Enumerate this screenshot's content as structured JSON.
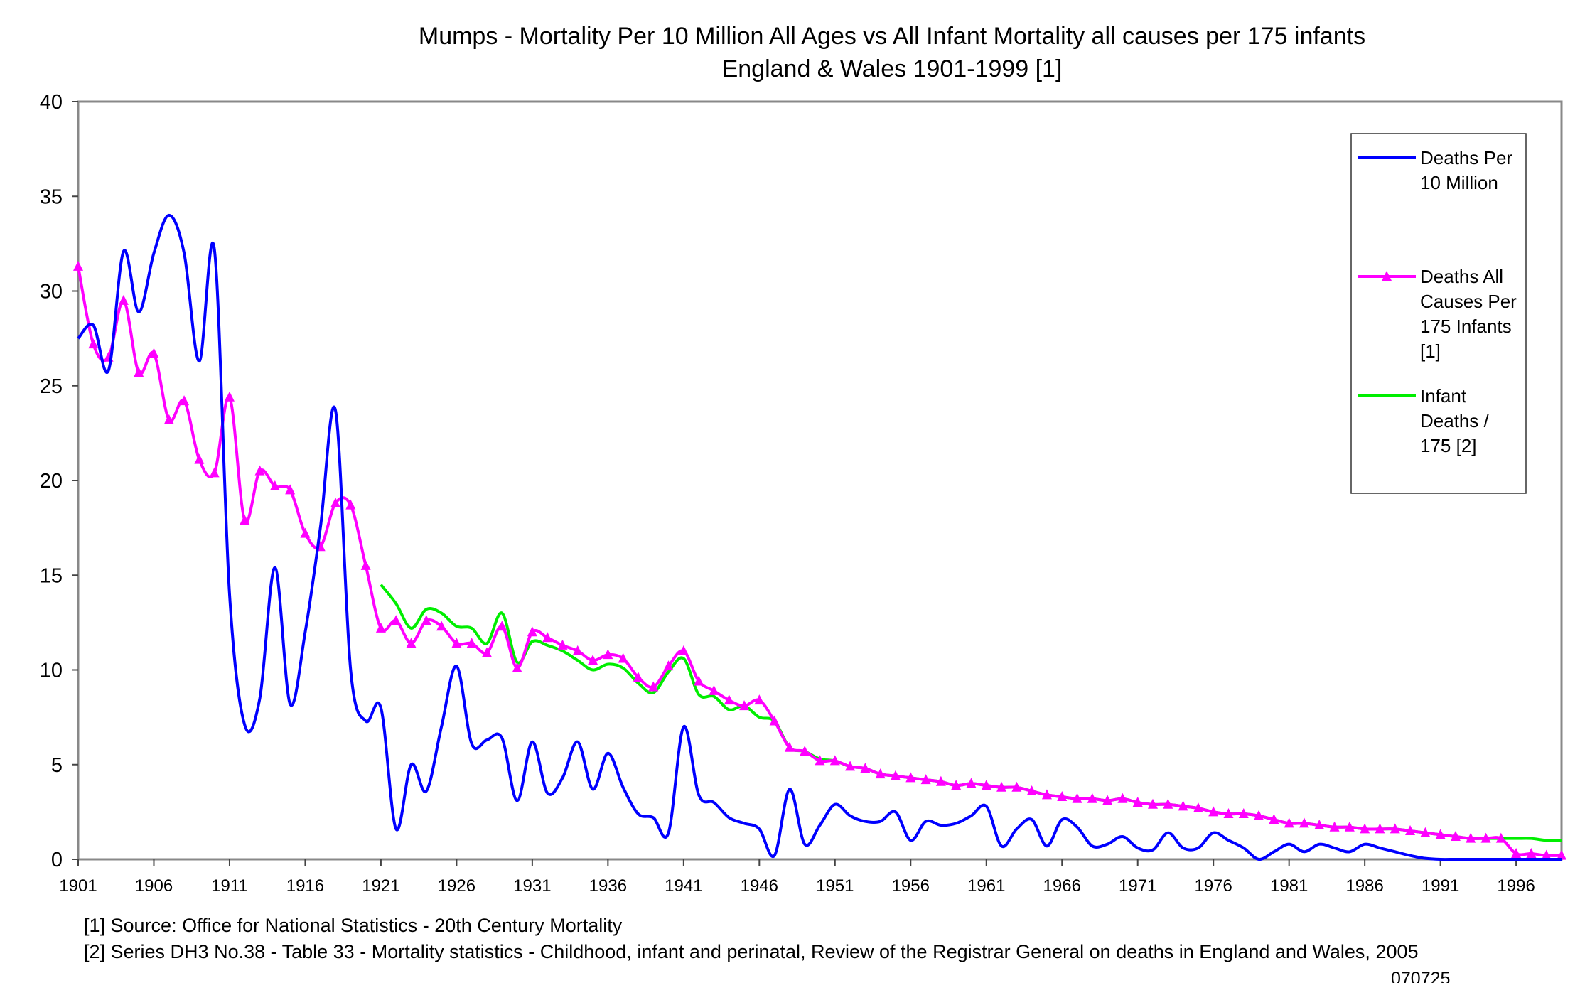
{
  "chart_data": {
    "type": "line",
    "title": "Mumps - Mortality Per 10 Million All Ages vs All Infant Mortality all causes per 175 infants",
    "subtitle": "England & Wales 1901-1999 [1]",
    "xlabel": "",
    "ylabel": "",
    "xlim": [
      1901,
      1999
    ],
    "ylim": [
      0,
      40
    ],
    "yticks": [
      0,
      5,
      10,
      15,
      20,
      25,
      30,
      35,
      40
    ],
    "xticks": [
      1901,
      1906,
      1911,
      1916,
      1921,
      1926,
      1931,
      1936,
      1941,
      1946,
      1951,
      1956,
      1961,
      1966,
      1971,
      1976,
      1981,
      1986,
      1991,
      1996
    ],
    "grid": false,
    "legend_position": "right",
    "series": [
      {
        "name": "Deaths Per 10 Million",
        "color": "#0000ff",
        "marker": "none",
        "x_start": 1901,
        "values": [
          27.5,
          28.2,
          25.8,
          32.1,
          28.9,
          32.0,
          34.0,
          32.0,
          26.3,
          32.2,
          14.0,
          7.1,
          8.5,
          15.4,
          8.2,
          12.0,
          17.5,
          23.7,
          10.0,
          7.3,
          8.0,
          1.6,
          5.0,
          3.6,
          7.0,
          10.2,
          6.1,
          6.3,
          6.4,
          3.1,
          6.2,
          3.5,
          4.3,
          6.2,
          3.7,
          5.6,
          3.8,
          2.4,
          2.2,
          1.4,
          7.0,
          3.4,
          3.0,
          2.2,
          1.9,
          1.6,
          0.2,
          3.7,
          0.8,
          1.8,
          2.9,
          2.3,
          2.0,
          2.0,
          2.5,
          1.0,
          2.0,
          1.8,
          1.9,
          2.3,
          2.8,
          0.7,
          1.6,
          2.1,
          0.7,
          2.1,
          1.7,
          0.7,
          0.8,
          1.2,
          0.6,
          0.5,
          1.4,
          0.6,
          0.6,
          1.4,
          1.0,
          0.6,
          0.0,
          0.4,
          0.8,
          0.4,
          0.8,
          0.6,
          0.4,
          0.8,
          0.6,
          0.4,
          0.2,
          0.05,
          0,
          0,
          0,
          0,
          0,
          0,
          0,
          0,
          0
        ]
      },
      {
        "name": "Deaths All Causes Per 175 Infants [1]",
        "color": "#ff00ff",
        "marker": "triangle",
        "x_start": 1901,
        "values": [
          31.3,
          27.2,
          26.5,
          29.5,
          25.7,
          26.7,
          23.2,
          24.2,
          21.1,
          20.4,
          24.4,
          17.9,
          20.5,
          19.7,
          19.5,
          17.2,
          16.5,
          18.8,
          18.7,
          15.5,
          12.2,
          12.6,
          11.4,
          12.6,
          12.3,
          11.4,
          11.4,
          10.9,
          12.3,
          10.1,
          12.0,
          11.7,
          11.3,
          11.0,
          10.5,
          10.8,
          10.6,
          9.6,
          9.1,
          10.2,
          11.0,
          9.4,
          8.9,
          8.4,
          8.1,
          8.4,
          7.3,
          5.9,
          5.7,
          5.2,
          5.2,
          4.9,
          4.8,
          4.5,
          4.4,
          4.3,
          4.2,
          4.1,
          3.9,
          4.0,
          3.9,
          3.8,
          3.8,
          3.6,
          3.4,
          3.3,
          3.2,
          3.2,
          3.1,
          3.2,
          3.0,
          2.9,
          2.9,
          2.8,
          2.7,
          2.5,
          2.4,
          2.4,
          2.3,
          2.1,
          1.9,
          1.9,
          1.8,
          1.7,
          1.7,
          1.6,
          1.6,
          1.6,
          1.5,
          1.4,
          1.3,
          1.2,
          1.1,
          1.1,
          1.1,
          0.3,
          0.3,
          0.2,
          0.2
        ]
      },
      {
        "name": "Infant Deaths / 175 [2]",
        "color": "#00ee00",
        "marker": "none",
        "x_start": 1921,
        "values": [
          14.5,
          13.5,
          12.2,
          13.2,
          13.0,
          12.3,
          12.2,
          11.4,
          13.0,
          10.4,
          11.5,
          11.3,
          11.0,
          10.5,
          10.0,
          10.3,
          10.1,
          9.3,
          8.8,
          9.9,
          10.6,
          8.7,
          8.6,
          7.9,
          8.1,
          7.5,
          7.3,
          5.9,
          5.7,
          5.3,
          5.2,
          4.9,
          4.8,
          4.5,
          4.4,
          4.3,
          4.2,
          4.1,
          3.9,
          4.0,
          3.9,
          3.8,
          3.8,
          3.6,
          3.4,
          3.3,
          3.2,
          3.2,
          3.1,
          3.2,
          3.0,
          2.9,
          2.9,
          2.8,
          2.7,
          2.5,
          2.4,
          2.4,
          2.3,
          2.1,
          1.9,
          1.9,
          1.8,
          1.7,
          1.7,
          1.6,
          1.6,
          1.6,
          1.5,
          1.4,
          1.3,
          1.2,
          1.1,
          1.1,
          1.1,
          1.1,
          1.1,
          1.0,
          1.0
        ]
      }
    ],
    "legend_lines": [
      [
        "Deaths Per",
        "10 Million"
      ],
      [
        "Deaths All",
        "Causes Per",
        "175 Infants",
        "[1]"
      ],
      [
        "Infant",
        "Deaths /",
        "175 [2]"
      ]
    ]
  },
  "footnotes": [
    "[1] Source: Office for National Statistics - 20th Century Mortality",
    "[2] Series DH3 No.38 - Table 33 - Mortality statistics - Childhood, infant and perinatal, Review of the Registrar General on deaths in England and Wales, 2005"
  ],
  "code": "070725"
}
